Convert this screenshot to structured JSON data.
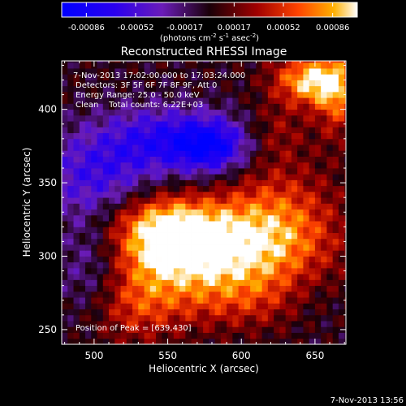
{
  "chart_data": {
    "type": "heatmap",
    "title": "Reconstructed RHESSI Image",
    "xlabel": "Heliocentric X (arcsec)",
    "ylabel": "Heliocentric Y (arcsec)",
    "xlim": [
      478,
      671
    ],
    "ylim": [
      240,
      433
    ],
    "x_ticks": [
      500,
      550,
      600,
      650
    ],
    "y_ticks": [
      250,
      300,
      350,
      400
    ],
    "colorbar": {
      "range": [
        -0.00086,
        0.00086
      ],
      "tick_labels": [
        "-0.00086",
        "-0.00052",
        "-0.00017",
        "0.00017",
        "0.00052",
        "0.00086"
      ],
      "units_label": "(photons cm",
      "units_sup1": "-2",
      "units_mid": " s",
      "units_sup2": "-1",
      "units_end": " asec",
      "units_sup3": "-2",
      "units_close": ")"
    },
    "annotations": [
      "7-Nov-2013 17:02:00.000 to 17:03:24.000",
      "Detectors: 3F 5F 6F 7F 8F 9F, Att 0",
      "Energy Range: 25.0 - 50.0 keV",
      "Clean    Total counts: 6.22E+03"
    ],
    "peak_label": "Position of Peak = [639,430]",
    "peak": {
      "x": 639,
      "y": 430
    },
    "features": [
      {
        "x": 590,
        "y": 305,
        "sx": 45,
        "sy": 22,
        "amp": 0.00068
      },
      {
        "x": 553,
        "y": 305,
        "sx": 28,
        "sy": 16,
        "amp": 0.0005
      },
      {
        "x": 545,
        "y": 325,
        "sx": 26,
        "sy": 14,
        "amp": 0.00045
      },
      {
        "x": 525,
        "y": 268,
        "sx": 22,
        "sy": 20,
        "amp": 0.00038
      },
      {
        "x": 625,
        "y": 330,
        "sx": 28,
        "sy": 26,
        "amp": 0.00038
      },
      {
        "x": 600,
        "y": 270,
        "sx": 50,
        "sy": 15,
        "amp": 0.0003
      },
      {
        "x": 648,
        "y": 420,
        "sx": 18,
        "sy": 12,
        "amp": 0.0008
      },
      {
        "x": 665,
        "y": 408,
        "sx": 10,
        "sy": 20,
        "amp": 0.00045
      },
      {
        "x": 625,
        "y": 385,
        "sx": 14,
        "sy": 14,
        "amp": 0.0002
      },
      {
        "x": 580,
        "y": 375,
        "sx": 18,
        "sy": 13,
        "amp": -0.0007
      },
      {
        "x": 545,
        "y": 380,
        "sx": 28,
        "sy": 16,
        "amp": -0.0005
      },
      {
        "x": 500,
        "y": 355,
        "sx": 28,
        "sy": 22,
        "amp": -0.00045
      },
      {
        "x": 500,
        "y": 290,
        "sx": 18,
        "sy": 25,
        "amp": -0.00035
      },
      {
        "x": 650,
        "y": 270,
        "sx": 20,
        "sy": 15,
        "amp": -0.0002
      }
    ]
  },
  "footer": {
    "timestamp": "7-Nov-2013 13:56"
  }
}
